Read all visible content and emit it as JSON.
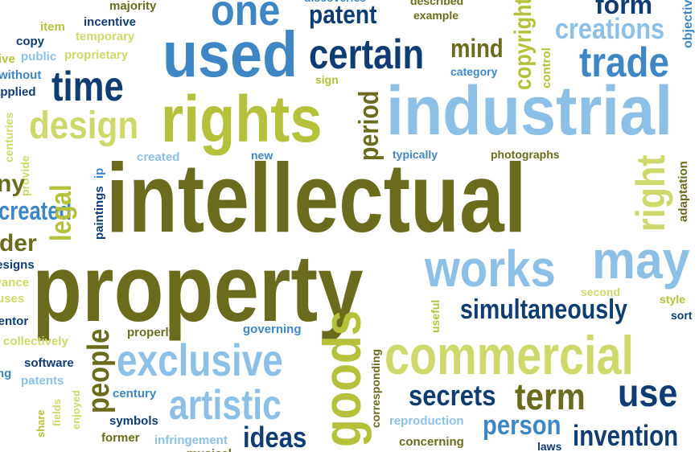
{
  "palette": {
    "olive": "#6b6b1e",
    "lime": "#b5c13a",
    "pale_lime": "#cfd86a",
    "navy": "#0f3d73",
    "mid_blue": "#3f86c4",
    "sky_blue": "#8cc0e6"
  },
  "words": [
    {
      "text": "intellectual",
      "color": "olive"
    },
    {
      "text": "property",
      "color": "olive"
    },
    {
      "text": "industrial",
      "color": "sky_blue"
    },
    {
      "text": "rights",
      "color": "lime"
    },
    {
      "text": "used",
      "color": "mid_blue"
    },
    {
      "text": "commercial",
      "color": "pale_lime"
    },
    {
      "text": "works",
      "color": "sky_blue"
    },
    {
      "text": "may",
      "color": "sky_blue"
    },
    {
      "text": "design",
      "color": "pale_lime"
    },
    {
      "text": "time",
      "color": "navy"
    },
    {
      "text": "certain",
      "color": "navy"
    },
    {
      "text": "trade",
      "color": "mid_blue"
    },
    {
      "text": "creations",
      "color": "sky_blue"
    },
    {
      "text": "one",
      "color": "mid_blue"
    },
    {
      "text": "patent",
      "color": "navy"
    },
    {
      "text": "mind",
      "color": "olive"
    },
    {
      "text": "exclusive",
      "color": "sky_blue"
    },
    {
      "text": "artistic",
      "color": "sky_blue"
    },
    {
      "text": "simultaneously",
      "color": "navy"
    },
    {
      "text": "secrets",
      "color": "navy"
    },
    {
      "text": "term",
      "color": "olive"
    },
    {
      "text": "use",
      "color": "navy"
    },
    {
      "text": "person",
      "color": "mid_blue"
    },
    {
      "text": "invention",
      "color": "navy"
    },
    {
      "text": "ideas",
      "color": "navy"
    },
    {
      "text": "goods",
      "color": "lime"
    },
    {
      "text": "people",
      "color": "olive"
    },
    {
      "text": "legal",
      "color": "lime"
    },
    {
      "text": "right",
      "color": "pale_lime"
    },
    {
      "text": "period",
      "color": "olive"
    },
    {
      "text": "copyright",
      "color": "lime"
    },
    {
      "text": "form",
      "color": "navy"
    },
    {
      "text": "majority",
      "color": "olive"
    },
    {
      "text": "incentive",
      "color": "navy"
    },
    {
      "text": "temporary",
      "color": "pale_lime"
    },
    {
      "text": "item",
      "color": "lime"
    },
    {
      "text": "copy",
      "color": "navy"
    },
    {
      "text": "public",
      "color": "sky_blue"
    },
    {
      "text": "proprietary",
      "color": "pale_lime"
    },
    {
      "text": "without",
      "color": "mid_blue"
    },
    {
      "text": "applied",
      "color": "navy"
    },
    {
      "text": "example",
      "color": "olive"
    },
    {
      "text": "described",
      "color": "olive"
    },
    {
      "text": "discoveries",
      "color": "mid_blue"
    },
    {
      "text": "category",
      "color": "mid_blue"
    },
    {
      "text": "sign",
      "color": "lime"
    },
    {
      "text": "control",
      "color": "lime"
    },
    {
      "text": "objective",
      "color": "mid_blue"
    },
    {
      "text": "new",
      "color": "mid_blue"
    },
    {
      "text": "created",
      "color": "sky_blue"
    },
    {
      "text": "typically",
      "color": "mid_blue"
    },
    {
      "text": "photographs",
      "color": "olive"
    },
    {
      "text": "adaptation",
      "color": "olive"
    },
    {
      "text": "paintings",
      "color": "navy"
    },
    {
      "text": "ip",
      "color": "mid_blue"
    },
    {
      "text": "provide",
      "color": "pale_lime"
    },
    {
      "text": "centuries",
      "color": "pale_lime"
    },
    {
      "text": "second",
      "color": "pale_lime"
    },
    {
      "text": "style",
      "color": "lime"
    },
    {
      "text": "sort",
      "color": "navy"
    },
    {
      "text": "useful",
      "color": "lime"
    },
    {
      "text": "properly",
      "color": "olive"
    },
    {
      "text": "governing",
      "color": "mid_blue"
    },
    {
      "text": "collectively",
      "color": "pale_lime"
    },
    {
      "text": "software",
      "color": "navy"
    },
    {
      "text": "patents",
      "color": "sky_blue"
    },
    {
      "text": "fields",
      "color": "pale_lime"
    },
    {
      "text": "enjoyed",
      "color": "pale_lime"
    },
    {
      "text": "share",
      "color": "lime"
    },
    {
      "text": "century",
      "color": "mid_blue"
    },
    {
      "text": "symbols",
      "color": "navy"
    },
    {
      "text": "former",
      "color": "olive"
    },
    {
      "text": "infringement",
      "color": "sky_blue"
    },
    {
      "text": "reproduction",
      "color": "sky_blue"
    },
    {
      "text": "concerning",
      "color": "olive"
    },
    {
      "text": "corresponding",
      "color": "olive"
    },
    {
      "text": "laws",
      "color": "navy"
    },
    {
      "text": "designs",
      "color": "navy"
    },
    {
      "text": "inventor",
      "color": "navy"
    },
    {
      "text": "advance",
      "color": "pale_lime"
    },
    {
      "text": "uses",
      "color": "pale_lime"
    },
    {
      "text": "holder",
      "color": "olive"
    },
    {
      "text": "created",
      "color": "mid_blue"
    },
    {
      "text": "ny",
      "color": "olive"
    },
    {
      "text": "ng",
      "color": "mid_blue"
    },
    {
      "text": "ive",
      "color": "lime"
    },
    {
      "text": "musical",
      "color": "olive"
    }
  ]
}
